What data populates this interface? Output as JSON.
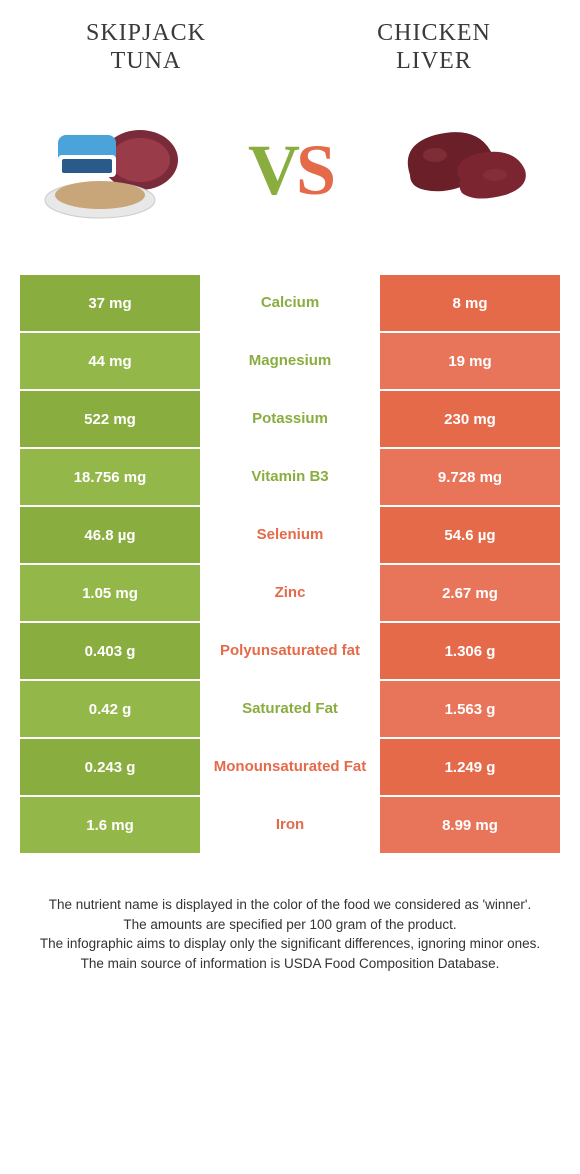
{
  "colors": {
    "left": "#8aad3f",
    "left_alt": "#94b74a",
    "right": "#e46a4a",
    "right_alt": "#e8755a",
    "text": "#3a3a3a"
  },
  "left_food": {
    "line1": "Skipjack",
    "line2": "tuna"
  },
  "right_food": {
    "line1": "Chicken",
    "line2": "liver"
  },
  "vs": {
    "v": "V",
    "s": "S"
  },
  "rows": [
    {
      "left": "37 mg",
      "label": "Calcium",
      "right": "8 mg",
      "winner": "left"
    },
    {
      "left": "44 mg",
      "label": "Magnesium",
      "right": "19 mg",
      "winner": "left"
    },
    {
      "left": "522 mg",
      "label": "Potassium",
      "right": "230 mg",
      "winner": "left"
    },
    {
      "left": "18.756 mg",
      "label": "Vitamin B3",
      "right": "9.728 mg",
      "winner": "left"
    },
    {
      "left": "46.8 µg",
      "label": "Selenium",
      "right": "54.6 µg",
      "winner": "right"
    },
    {
      "left": "1.05 mg",
      "label": "Zinc",
      "right": "2.67 mg",
      "winner": "right"
    },
    {
      "left": "0.403 g",
      "label": "Polyunsaturated fat",
      "right": "1.306 g",
      "winner": "right"
    },
    {
      "left": "0.42 g",
      "label": "Saturated Fat",
      "right": "1.563 g",
      "winner": "left"
    },
    {
      "left": "0.243 g",
      "label": "Monounsaturated Fat",
      "right": "1.249 g",
      "winner": "right"
    },
    {
      "left": "1.6 mg",
      "label": "Iron",
      "right": "8.99 mg",
      "winner": "right"
    }
  ],
  "footer": [
    "The nutrient name is displayed in the color of the food we considered as 'winner'.",
    "The amounts are specified per 100 gram of the product.",
    "The infographic aims to display only the significant differences, ignoring minor ones.",
    "The main source of information is USDA Food Composition Database."
  ]
}
